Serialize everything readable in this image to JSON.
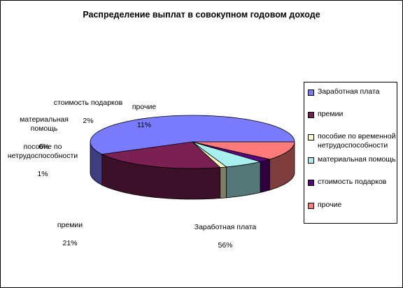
{
  "chart_data": {
    "type": "pie",
    "title": "Распределение выплат в совокупном годовом доходе",
    "slices": [
      {
        "name": "Заработная плата",
        "value": 56,
        "label": "56%",
        "color": "#7b7bff",
        "side_color": "#3d3d80"
      },
      {
        "name": "премии",
        "value": 21,
        "label": "21%",
        "color": "#7b2052",
        "side_color": "#3d1029"
      },
      {
        "name": "пособие по временной нетрудоспособности",
        "value": 1,
        "label": "1%",
        "color": "#fffcc8",
        "side_color": "#807e64"
      },
      {
        "name": "материальная помощь",
        "value": 6,
        "label": "6%",
        "color": "#a8f0f0",
        "side_color": "#547878"
      },
      {
        "name": "стоимость подарков",
        "value": 2,
        "label": "2%",
        "color": "#5a0080",
        "side_color": "#2d0040"
      },
      {
        "name": "прочие",
        "value": 11,
        "label": "11%",
        "color": "#ff7b7b",
        "side_color": "#803d3d"
      }
    ],
    "data_labels": [
      {
        "name": "Заработная плата",
        "pct": "56%"
      },
      {
        "name": "премии",
        "pct": "21%"
      },
      {
        "name": "пособие по\nнетрудоспособности",
        "pct": "1%"
      },
      {
        "name": "материальная\nпомощь",
        "pct": "6%"
      },
      {
        "name": "стоимость подарков",
        "pct": "2%"
      },
      {
        "name": "прочие",
        "pct": "11%"
      }
    ],
    "legend": [
      "Заработная плата",
      "премии",
      "пособие по временной нетрудоспособности",
      "материальная помощь",
      "стоимость подарков",
      "прочие"
    ],
    "legend_position": "right",
    "style": "3d-pie"
  }
}
